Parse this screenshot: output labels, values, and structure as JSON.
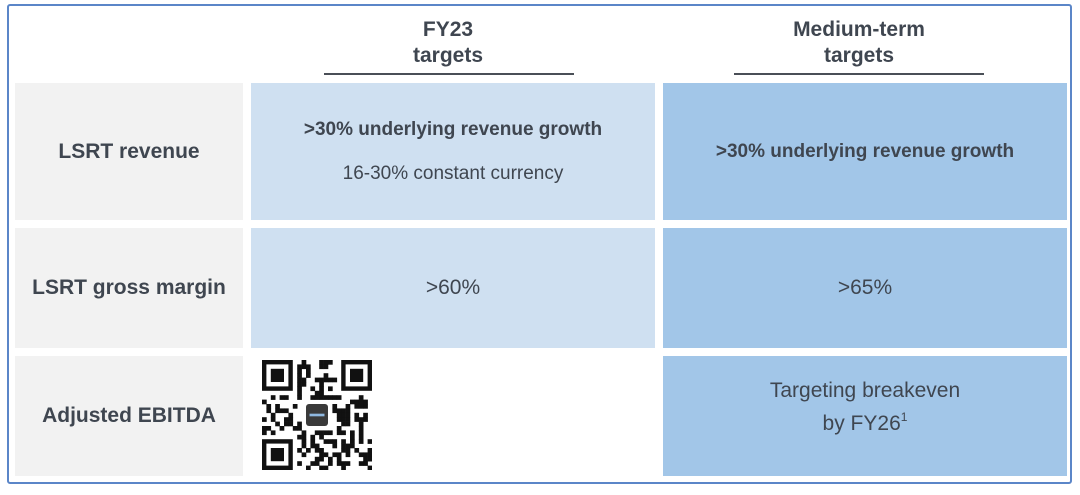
{
  "header": {
    "fy23_line1": "FY23",
    "fy23_line2": "targets",
    "medium_line1": "Medium-term",
    "medium_line2": "targets"
  },
  "rows": [
    {
      "label": "LSRT revenue",
      "fy23_bold": ">30% underlying revenue growth",
      "fy23_sub": "16-30% constant currency",
      "medium_bold": ">30% underlying revenue growth"
    },
    {
      "label": "LSRT gross margin",
      "fy23_value": ">60%",
      "medium_value": ">65%"
    },
    {
      "label": "Adjusted EBITDA",
      "medium_line1": "Targeting breakeven",
      "medium_line2": "by FY26",
      "medium_footnote": "1"
    }
  ],
  "qr_icon": "qr-code-icon",
  "colors": {
    "border": "#5b86c8",
    "label_bg": "#f2f2f2",
    "fy23_bg": "#cfe0f1",
    "medium_bg": "#a2c6e8",
    "text": "#3f4650"
  }
}
